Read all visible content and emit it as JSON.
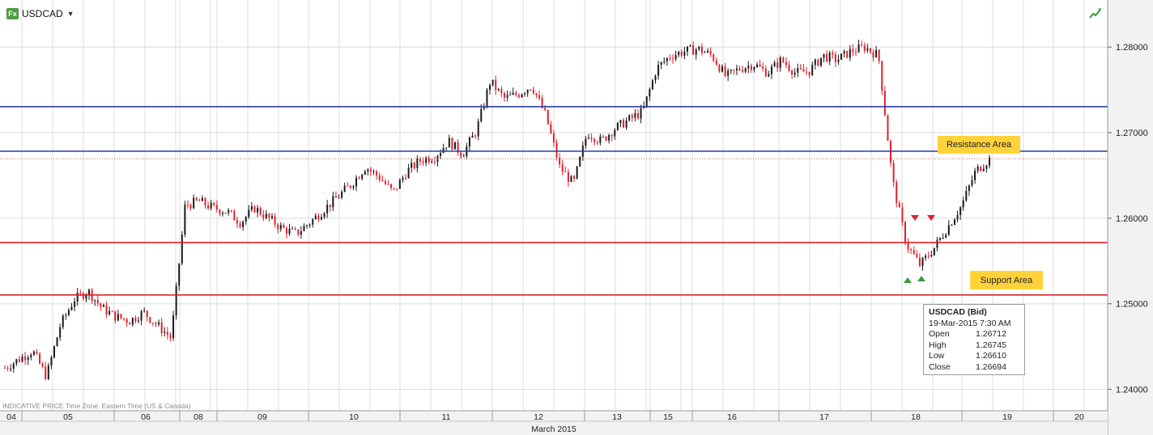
{
  "header": {
    "symbol": "USDCAD",
    "fx_badge": "Fx"
  },
  "footer_note": "INDICATIVE PRICE   Time Zone: Eastern Time (US & Canada)",
  "tooltip": {
    "title": "USDCAD (Bid)",
    "datetime": "19-Mar-2015 7:30 AM",
    "rows": [
      {
        "label": "Open",
        "value": "1.26712"
      },
      {
        "label": "High",
        "value": "1.26745"
      },
      {
        "label": "Low",
        "value": "1.26610"
      },
      {
        "label": "Close",
        "value": "1.26694"
      }
    ]
  },
  "annotations": {
    "resistance": "Resistance Area",
    "support": "Support Area"
  },
  "colors": {
    "up_candle": "#1a1a1a",
    "down_candle": "#e0202a",
    "blue_line": "#2a3fa8",
    "red_line": "#e0202a",
    "annotation_bg": "#ffd23a",
    "grid": "#dcdcdc"
  },
  "chart_data": {
    "type": "candlestick",
    "title": "",
    "x_axis_label": "March 2015",
    "ylim": [
      1.2375,
      1.2855
    ],
    "y_ticks": [
      "1.24000",
      "1.25000",
      "1.26000",
      "1.27000",
      "1.28000"
    ],
    "x_ticks": [
      "04",
      "05",
      "06",
      "08",
      "09",
      "10",
      "11",
      "12",
      "13",
      "15",
      "16",
      "17",
      "18",
      "19",
      "20"
    ],
    "horizontal_lines": [
      {
        "value": 1.27303,
        "label": "1.27303",
        "color": "blue"
      },
      {
        "value": 1.26783,
        "label": "1.26783",
        "color": "blue"
      },
      {
        "value": 1.25716,
        "label": "1.25716",
        "color": "red"
      },
      {
        "value": 1.25103,
        "label": "1.25103",
        "color": "red"
      }
    ],
    "current_price": {
      "value": 1.26694,
      "label": "1.26694"
    },
    "series": [
      {
        "name": "USDCAD (Bid)",
        "approx_close_path": [
          1.2425,
          1.2435,
          1.2445,
          1.2415,
          1.2475,
          1.2505,
          1.2515,
          1.2495,
          1.2485,
          1.248,
          1.249,
          1.2475,
          1.246,
          1.2615,
          1.262,
          1.2612,
          1.2608,
          1.2595,
          1.2612,
          1.26,
          1.2588,
          1.2582,
          1.2595,
          1.261,
          1.2625,
          1.264,
          1.266,
          1.2648,
          1.263,
          1.2655,
          1.2668,
          1.2672,
          1.269,
          1.2675,
          1.2702,
          1.276,
          1.274,
          1.2745,
          1.2755,
          1.272,
          1.266,
          1.264,
          1.27,
          1.269,
          1.2705,
          1.2715,
          1.2725,
          1.2775,
          1.279,
          1.2795,
          1.2798,
          1.279,
          1.2765,
          1.2775,
          1.278,
          1.277,
          1.2785,
          1.277,
          1.2772,
          1.279,
          1.2785,
          1.2795,
          1.28,
          1.279,
          1.2645,
          1.257,
          1.2545,
          1.2565,
          1.259,
          1.2615,
          1.2655,
          1.2669
        ]
      }
    ]
  }
}
